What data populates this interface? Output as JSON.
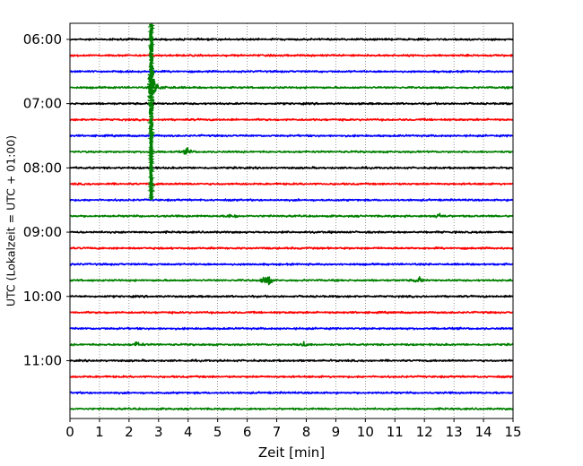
{
  "chart_data": {
    "type": "line",
    "title": "",
    "xlabel": "Zeit  [min]",
    "ylabel": "UTC (Lokalzeit = UTC + 01:00)",
    "xlim": [
      0,
      15
    ],
    "x_ticks": [
      0,
      1,
      2,
      3,
      4,
      5,
      6,
      7,
      8,
      9,
      10,
      11,
      12,
      13,
      14,
      15
    ],
    "ylim_hours": [
      "05:45",
      "11:54"
    ],
    "y_tick_labels": [
      "06:00",
      "07:00",
      "08:00",
      "09:00",
      "10:00",
      "11:00"
    ],
    "y_tick_hours": [
      6,
      7,
      8,
      9,
      10,
      11
    ],
    "row_interval_min": 15,
    "row_colors": [
      "#000000",
      "#ff0000",
      "#0000ff",
      "#008000"
    ],
    "grid": "vertical dotted",
    "traces": [
      {
        "start": "06:00",
        "color": "#000000",
        "events": []
      },
      {
        "start": "06:15",
        "color": "#ff0000",
        "events": []
      },
      {
        "start": "06:30",
        "color": "#0000ff",
        "events": []
      },
      {
        "start": "06:45",
        "color": "#008000",
        "events": [
          {
            "t_min": 2.75,
            "amplitude": "very large (earthquake)"
          }
        ]
      },
      {
        "start": "07:00",
        "color": "#000000",
        "events": []
      },
      {
        "start": "07:15",
        "color": "#ff0000",
        "events": []
      },
      {
        "start": "07:30",
        "color": "#0000ff",
        "events": []
      },
      {
        "start": "07:45",
        "color": "#008000",
        "events": [
          {
            "t_min": 4.0,
            "amplitude": "small"
          }
        ]
      },
      {
        "start": "08:00",
        "color": "#000000",
        "events": []
      },
      {
        "start": "08:15",
        "color": "#ff0000",
        "events": []
      },
      {
        "start": "08:30",
        "color": "#0000ff",
        "events": []
      },
      {
        "start": "08:45",
        "color": "#008000",
        "events": [
          {
            "t_min": 5.5,
            "amplitude": "small"
          },
          {
            "t_min": 12.5,
            "amplitude": "small"
          }
        ]
      },
      {
        "start": "09:00",
        "color": "#000000",
        "events": []
      },
      {
        "start": "09:15",
        "color": "#ff0000",
        "events": []
      },
      {
        "start": "09:30",
        "color": "#0000ff",
        "events": []
      },
      {
        "start": "09:45",
        "color": "#008000",
        "events": [
          {
            "t_min": 6.65,
            "amplitude": "medium"
          },
          {
            "t_min": 11.8,
            "amplitude": "small"
          }
        ]
      },
      {
        "start": "10:00",
        "color": "#000000",
        "events": []
      },
      {
        "start": "10:15",
        "color": "#ff0000",
        "events": []
      },
      {
        "start": "10:30",
        "color": "#0000ff",
        "events": []
      },
      {
        "start": "10:45",
        "color": "#008000",
        "events": [
          {
            "t_min": 2.3,
            "amplitude": "small"
          },
          {
            "t_min": 7.9,
            "amplitude": "small"
          }
        ]
      },
      {
        "start": "11:00",
        "color": "#000000",
        "events": []
      },
      {
        "start": "11:15",
        "color": "#ff0000",
        "events": []
      },
      {
        "start": "11:30",
        "color": "#0000ff",
        "events": []
      },
      {
        "start": "11:45",
        "color": "#008000",
        "events": []
      }
    ]
  }
}
